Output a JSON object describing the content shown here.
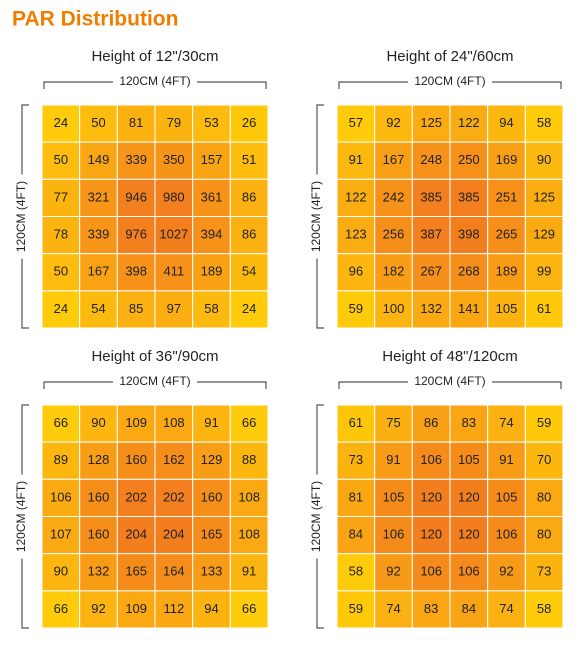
{
  "title": "PAR Distribution",
  "panels": [
    {
      "title": "Height of 12\"/30cm",
      "width_label": "120CM (4FT)",
      "height_label": "120CM (4FT)",
      "rows": [
        [
          24,
          50,
          81,
          79,
          53,
          26
        ],
        [
          50,
          149,
          339,
          350,
          157,
          51
        ],
        [
          77,
          321,
          946,
          980,
          361,
          86
        ],
        [
          78,
          339,
          976,
          1027,
          394,
          86
        ],
        [
          50,
          167,
          398,
          411,
          189,
          54
        ],
        [
          24,
          54,
          85,
          97,
          58,
          24
        ]
      ]
    },
    {
      "title": "Height of 24\"/60cm",
      "width_label": "120CM (4FT)",
      "height_label": "120CM (4FT)",
      "rows": [
        [
          57,
          92,
          125,
          122,
          94,
          58
        ],
        [
          91,
          167,
          248,
          250,
          169,
          90
        ],
        [
          122,
          242,
          385,
          385,
          251,
          125
        ],
        [
          123,
          256,
          387,
          398,
          265,
          129
        ],
        [
          96,
          182,
          267,
          268,
          189,
          99
        ],
        [
          59,
          100,
          132,
          141,
          105,
          61
        ]
      ]
    },
    {
      "title": "Height of 36\"/90cm",
      "width_label": "120CM (4FT)",
      "height_label": "120CM (4FT)",
      "rows": [
        [
          66,
          90,
          109,
          108,
          91,
          66
        ],
        [
          89,
          128,
          160,
          162,
          129,
          88
        ],
        [
          106,
          160,
          202,
          202,
          160,
          108
        ],
        [
          107,
          160,
          204,
          204,
          165,
          108
        ],
        [
          90,
          132,
          165,
          164,
          133,
          91
        ],
        [
          66,
          92,
          109,
          112,
          94,
          66
        ]
      ]
    },
    {
      "title": "Height of 48\"/120cm",
      "width_label": "120CM (4FT)",
      "height_label": "120CM (4FT)",
      "rows": [
        [
          61,
          75,
          86,
          83,
          74,
          59
        ],
        [
          73,
          91,
          106,
          105,
          91,
          70
        ],
        [
          81,
          105,
          120,
          120,
          105,
          80
        ],
        [
          84,
          106,
          120,
          120,
          106,
          80
        ],
        [
          58,
          92,
          106,
          106,
          92,
          73
        ],
        [
          59,
          74,
          83,
          84,
          74,
          58
        ]
      ]
    }
  ]
}
